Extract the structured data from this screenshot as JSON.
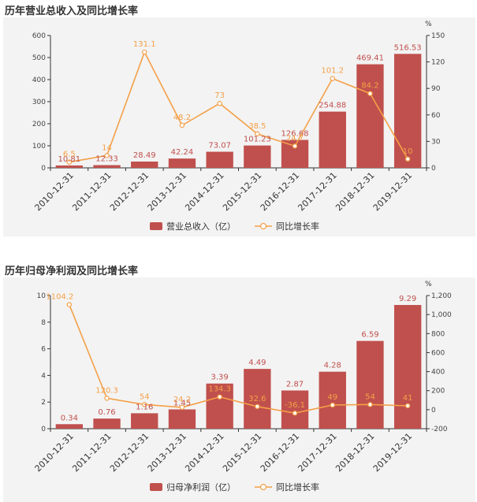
{
  "colors": {
    "bar": "#c0504d",
    "line": "#f4a048",
    "axis": "#333333",
    "background": "#f3f3f3"
  },
  "chart_data": [
    {
      "type": "bar",
      "title": "历年营业总收入及同比增长率",
      "categories": [
        "2010-12-31",
        "2011-12-31",
        "2012-12-31",
        "2013-12-31",
        "2014-12-31",
        "2015-12-31",
        "2016-12-31",
        "2017-12-31",
        "2018-12-31",
        "2019-12-31"
      ],
      "series": [
        {
          "name": "营业总收入（亿）",
          "type": "bar",
          "axis": "left",
          "values": [
            10.81,
            12.33,
            28.49,
            42.24,
            73.07,
            101.23,
            126.68,
            254.88,
            469.41,
            516.53
          ]
        },
        {
          "name": "同比增长率",
          "type": "line",
          "axis": "right",
          "values": [
            6.5,
            14,
            131.1,
            48.2,
            73,
            38.5,
            24.7,
            101.2,
            84.2,
            10
          ]
        }
      ],
      "left_axis": {
        "min": 0,
        "max": 600,
        "ticks": [
          0,
          100,
          200,
          300,
          400,
          500,
          600
        ]
      },
      "right_axis": {
        "min": 0,
        "max": 150,
        "ticks": [
          0,
          30,
          60,
          90,
          120,
          150
        ],
        "unit": "%"
      },
      "legend_placement": "bottom-center"
    },
    {
      "type": "bar",
      "title": "历年归母净利润及同比增长率",
      "categories": [
        "2010-12-31",
        "2011-12-31",
        "2012-12-31",
        "2013-12-31",
        "2014-12-31",
        "2015-12-31",
        "2016-12-31",
        "2017-12-31",
        "2018-12-31",
        "2019-12-31"
      ],
      "series": [
        {
          "name": "归母净利润（亿）",
          "type": "bar",
          "axis": "left",
          "values": [
            0.34,
            0.76,
            1.16,
            1.45,
            3.39,
            4.49,
            2.87,
            4.28,
            6.59,
            9.29
          ]
        },
        {
          "name": "同比增长率",
          "type": "line",
          "axis": "right",
          "values": [
            1104.2,
            120.3,
            54,
            24.2,
            134.3,
            32.6,
            -36.1,
            49,
            54,
            41
          ]
        }
      ],
      "left_axis": {
        "min": 0,
        "max": 10,
        "ticks": [
          0,
          2,
          4,
          6,
          8,
          10
        ]
      },
      "right_axis": {
        "min": -200,
        "max": 1200,
        "ticks": [
          -200,
          0,
          200,
          400,
          600,
          800,
          "1,000",
          "1,200"
        ],
        "unit": "%"
      },
      "legend_placement": "bottom-center"
    }
  ]
}
